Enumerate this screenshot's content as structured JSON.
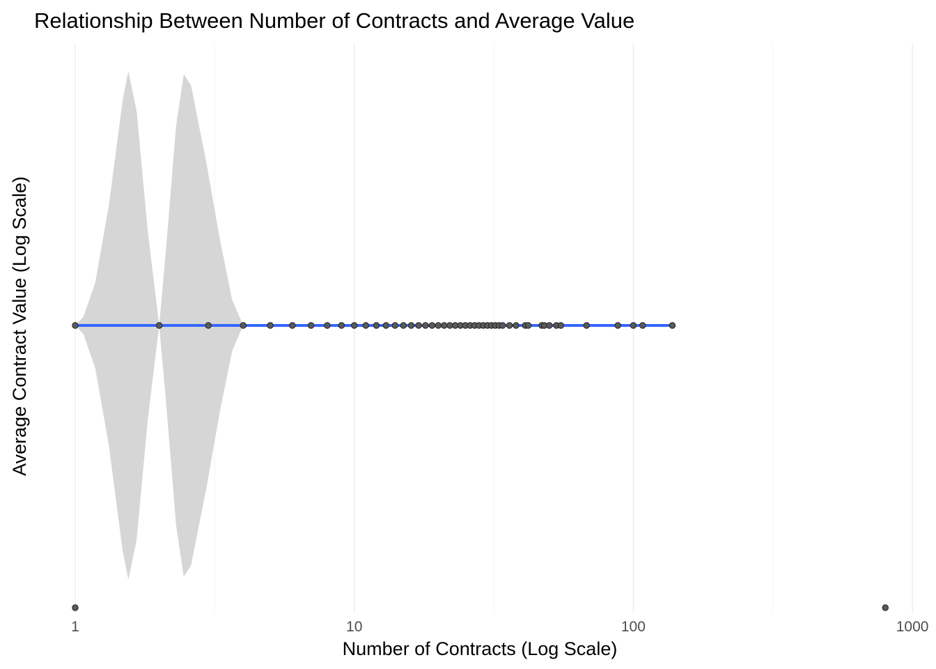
{
  "chart_data": {
    "type": "scatter",
    "title": "Relationship Between Number of Contracts and Average Value",
    "xlabel": "Number of Contracts (Log Scale)",
    "ylabel": "Average Contract Value (Log Scale)",
    "x_scale": "log10",
    "y_scale": "log10",
    "xlim": [
      1,
      1000
    ],
    "x_ticks": [
      1,
      10,
      100,
      1000
    ],
    "x_tick_labels": [
      "1",
      "10",
      "100",
      "1000"
    ],
    "y_ticks": [],
    "grid": true,
    "legend": "none",
    "y_level_main": 1,
    "y_level_low": 0.5,
    "points": [
      {
        "x": 1,
        "y": 1
      },
      {
        "x": 2,
        "y": 1
      },
      {
        "x": 3,
        "y": 1
      },
      {
        "x": 4,
        "y": 1
      },
      {
        "x": 5,
        "y": 1
      },
      {
        "x": 6,
        "y": 1
      },
      {
        "x": 7,
        "y": 1
      },
      {
        "x": 8,
        "y": 1
      },
      {
        "x": 9,
        "y": 1
      },
      {
        "x": 10,
        "y": 1
      },
      {
        "x": 11,
        "y": 1
      },
      {
        "x": 12,
        "y": 1
      },
      {
        "x": 13,
        "y": 1
      },
      {
        "x": 14,
        "y": 1
      },
      {
        "x": 15,
        "y": 1
      },
      {
        "x": 16,
        "y": 1
      },
      {
        "x": 17,
        "y": 1
      },
      {
        "x": 18,
        "y": 1
      },
      {
        "x": 19,
        "y": 1
      },
      {
        "x": 20,
        "y": 1
      },
      {
        "x": 21,
        "y": 1
      },
      {
        "x": 22,
        "y": 1
      },
      {
        "x": 23,
        "y": 1
      },
      {
        "x": 24,
        "y": 1
      },
      {
        "x": 25,
        "y": 1
      },
      {
        "x": 26,
        "y": 1
      },
      {
        "x": 27,
        "y": 1
      },
      {
        "x": 28,
        "y": 1
      },
      {
        "x": 29,
        "y": 1
      },
      {
        "x": 30,
        "y": 1
      },
      {
        "x": 31,
        "y": 1
      },
      {
        "x": 32,
        "y": 1
      },
      {
        "x": 33,
        "y": 1
      },
      {
        "x": 34,
        "y": 1
      },
      {
        "x": 36,
        "y": 1
      },
      {
        "x": 38,
        "y": 1
      },
      {
        "x": 41,
        "y": 1
      },
      {
        "x": 42,
        "y": 1
      },
      {
        "x": 47,
        "y": 1
      },
      {
        "x": 48,
        "y": 1
      },
      {
        "x": 50,
        "y": 1
      },
      {
        "x": 53,
        "y": 1
      },
      {
        "x": 55,
        "y": 1
      },
      {
        "x": 68,
        "y": 1
      },
      {
        "x": 88,
        "y": 1
      },
      {
        "x": 100,
        "y": 1
      },
      {
        "x": 108,
        "y": 1
      },
      {
        "x": 138,
        "y": 1
      },
      {
        "x": 1,
        "y": 0.5
      },
      {
        "x": 800,
        "y": 0.5
      }
    ],
    "trend_line": {
      "x": [
        1,
        138
      ],
      "y": [
        1,
        1
      ],
      "color": "#3366ff"
    },
    "confidence_band": {
      "color": "#d6d6d6",
      "center": 1,
      "half_width": [
        {
          "x": 1,
          "w": 0
        },
        {
          "x": 1.07,
          "w": 0.03
        },
        {
          "x": 1.18,
          "w": 0.15
        },
        {
          "x": 1.32,
          "w": 0.42
        },
        {
          "x": 1.48,
          "w": 0.79
        },
        {
          "x": 1.55,
          "w": 0.89
        },
        {
          "x": 1.66,
          "w": 0.75
        },
        {
          "x": 1.82,
          "w": 0.33
        },
        {
          "x": 2,
          "w": 0
        },
        {
          "x": 2.12,
          "w": 0.28
        },
        {
          "x": 2.3,
          "w": 0.7
        },
        {
          "x": 2.45,
          "w": 0.88
        },
        {
          "x": 2.6,
          "w": 0.84
        },
        {
          "x": 2.95,
          "w": 0.57
        },
        {
          "x": 3.3,
          "w": 0.3
        },
        {
          "x": 3.65,
          "w": 0.09
        },
        {
          "x": 4,
          "w": 0
        }
      ]
    }
  }
}
